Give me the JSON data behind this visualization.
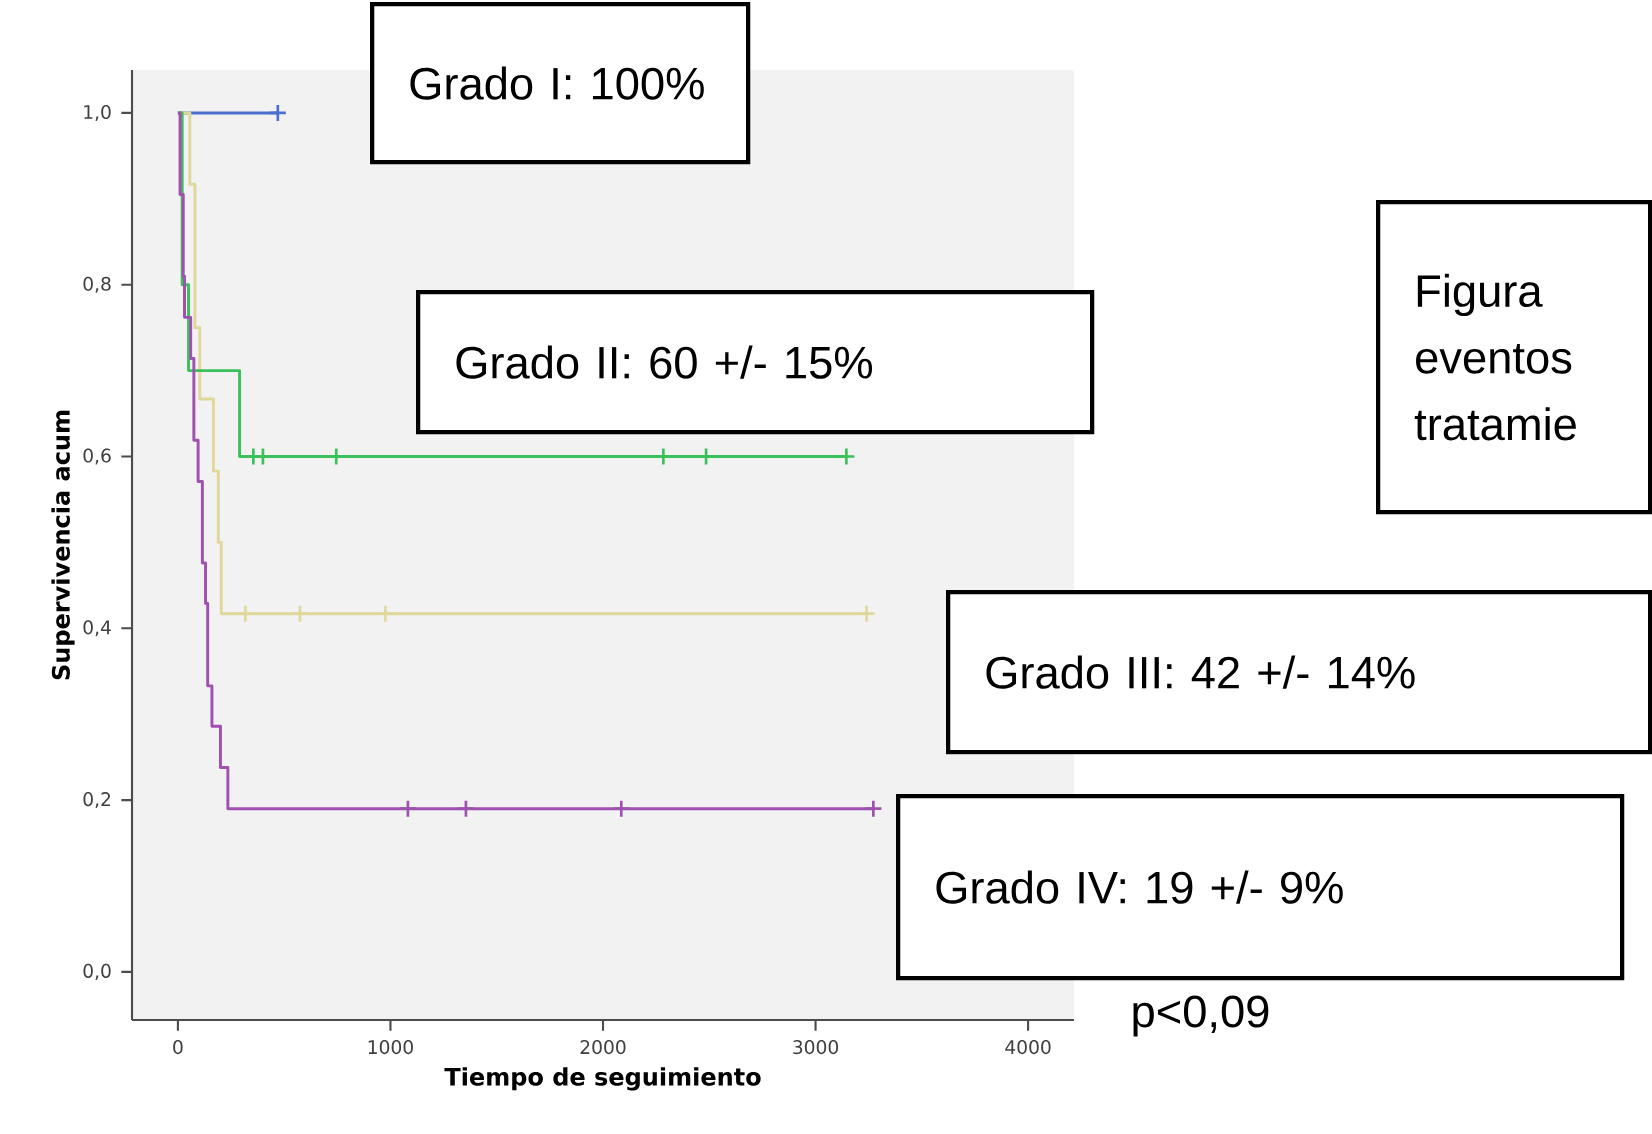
{
  "chart_data": {
    "type": "step",
    "xlabel": "Tiempo de seguimiento",
    "ylabel": "Supervivencia acum",
    "xlim": [
      -216,
      4216
    ],
    "ylim": [
      -0.056,
      1.05
    ],
    "xticks": [
      0,
      1000,
      2000,
      3000,
      4000
    ],
    "yticks": [
      {
        "value": 0,
        "label": "0,0"
      },
      {
        "value": 0.2,
        "label": "0,2"
      },
      {
        "value": 0.4,
        "label": "0,4"
      },
      {
        "value": 0.6,
        "label": "0,6"
      },
      {
        "value": 0.8,
        "label": "0,8"
      },
      {
        "value": 1.0,
        "label": "1,0"
      }
    ],
    "series": [
      {
        "color": "#4a6fd0",
        "x": [
          0,
          470
        ],
        "values": [
          1.0,
          1.0
        ]
      },
      {
        "color": "#e0d89a",
        "x": [
          0,
          56,
          80,
          103,
          167,
          190,
          204,
          3240
        ],
        "values": [
          1.0,
          0.917,
          0.75,
          0.667,
          0.583,
          0.5,
          0.417,
          0.417
        ]
      },
      {
        "color": "#3cc15a",
        "x": [
          0,
          20,
          50,
          290,
          3145
        ],
        "values": [
          1.0,
          0.8,
          0.7,
          0.6,
          0.6
        ]
      },
      {
        "color": "#a050b0",
        "x": [
          0,
          10,
          25,
          31,
          60,
          75,
          95,
          115,
          130,
          140,
          160,
          200,
          235,
          3272
        ],
        "values": [
          1.0,
          0.905,
          0.81,
          0.762,
          0.714,
          0.619,
          0.571,
          0.476,
          0.429,
          0.333,
          0.286,
          0.238,
          0.19,
          0.19
        ]
      },
      {
        "type": "scatter",
        "marker": "cross",
        "color": "#4a6fd0",
        "x": [
          470
        ],
        "values": [
          1.0
        ]
      },
      {
        "type": "scatter",
        "marker": "cross",
        "color": "#e0d89a",
        "x": [
          317,
          574,
          976,
          3240
        ],
        "values": [
          0.417,
          0.417,
          0.417,
          0.417
        ]
      },
      {
        "type": "scatter",
        "marker": "cross",
        "color": "#3cc15a",
        "x": [
          355,
          400,
          745,
          2284,
          2485,
          3145
        ],
        "values": [
          0.6,
          0.6,
          0.6,
          0.6,
          0.6,
          0.6
        ]
      },
      {
        "type": "scatter",
        "marker": "cross",
        "color": "#a050b0",
        "x": [
          1082,
          1355,
          2086,
          3272
        ],
        "values": [
          0.19,
          0.19,
          0.19,
          0.19
        ]
      }
    ],
    "annotations": [
      "Grado I: 100%",
      "Grado II: 60 +/- 15%",
      "Figura eventos tratamie",
      "Grado III: 42 +/- 14%",
      "Grado IV: 19 +/- 9%",
      "p<0,09"
    ]
  }
}
